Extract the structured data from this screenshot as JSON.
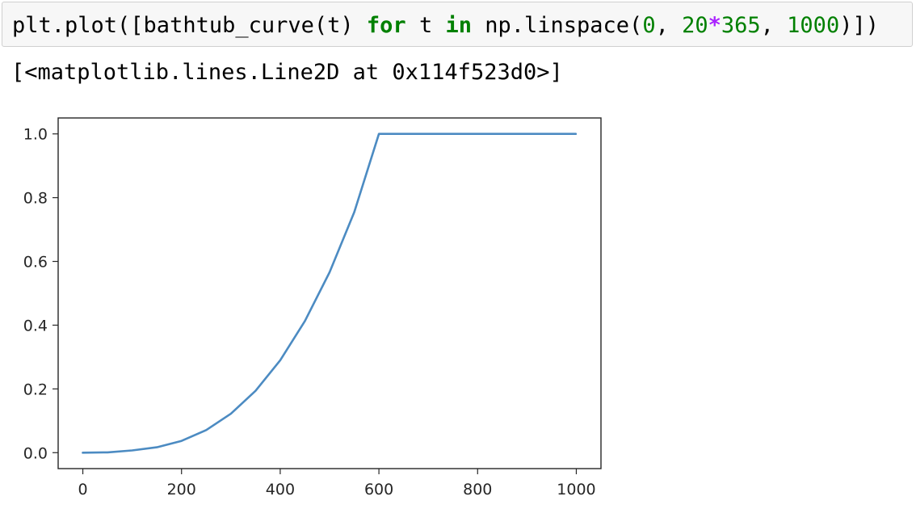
{
  "cell": {
    "code_tokens": [
      {
        "text": "plt.plot([bathtub_curve(t) ",
        "kind": "plain"
      },
      {
        "text": "for",
        "kind": "keyword"
      },
      {
        "text": " t ",
        "kind": "plain"
      },
      {
        "text": "in",
        "kind": "keyword"
      },
      {
        "text": " np.linspace(",
        "kind": "plain"
      },
      {
        "text": "0",
        "kind": "number"
      },
      {
        "text": ", ",
        "kind": "plain"
      },
      {
        "text": "20",
        "kind": "number"
      },
      {
        "text": "*",
        "kind": "operator"
      },
      {
        "text": "365",
        "kind": "number"
      },
      {
        "text": ", ",
        "kind": "plain"
      },
      {
        "text": "1000",
        "kind": "number"
      },
      {
        "text": ")])",
        "kind": "plain"
      }
    ],
    "output_text": "[<matplotlib.lines.Line2D at 0x114f523d0>]"
  },
  "colors": {
    "line": "#4c8bc2",
    "keyword": "#008000",
    "number": "#008000",
    "operator": "#aa22ff"
  },
  "chart_data": {
    "type": "line",
    "x_ticks": [
      0,
      200,
      400,
      600,
      800,
      1000
    ],
    "y_ticks": [
      0.0,
      0.2,
      0.4,
      0.6,
      0.8,
      1.0
    ],
    "x_tick_labels": [
      "0",
      "200",
      "400",
      "600",
      "800",
      "1000"
    ],
    "y_tick_labels": [
      "0.0",
      "0.2",
      "0.4",
      "0.6",
      "0.8",
      "1.0"
    ],
    "xlim": [
      -50,
      1050
    ],
    "ylim": [
      -0.05,
      1.05
    ],
    "grid": false,
    "series": [
      {
        "x": [
          0,
          50,
          100,
          150,
          200,
          250,
          300,
          350,
          400,
          450,
          500,
          550,
          600,
          650,
          700,
          750,
          800,
          850,
          900,
          950,
          999
        ],
        "values": [
          0.0,
          0.001,
          0.007,
          0.017,
          0.037,
          0.071,
          0.122,
          0.194,
          0.29,
          0.413,
          0.566,
          0.754,
          1.0,
          1.0,
          1.0,
          1.0,
          1.0,
          1.0,
          1.0,
          1.0,
          1.0
        ]
      }
    ]
  }
}
